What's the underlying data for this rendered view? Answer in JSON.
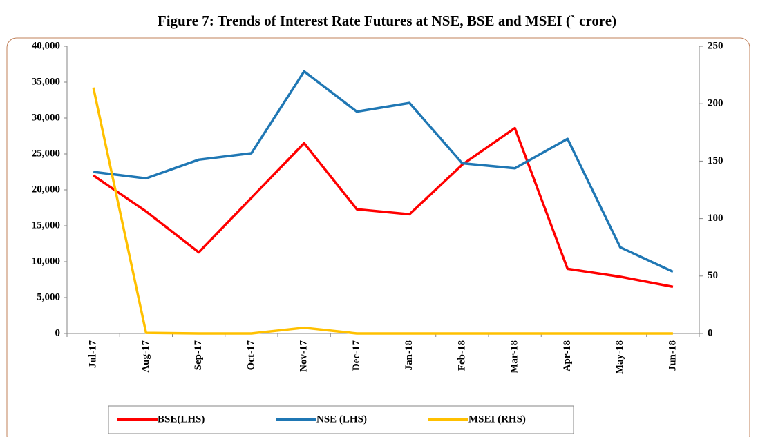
{
  "chart_data": {
    "type": "line",
    "title": "Figure 7: Trends of Interest Rate Futures at NSE, BSE and MSEI (` crore)",
    "categories": [
      "Jul-17",
      "Aug-17",
      "Sep-17",
      "Oct-17",
      "Nov-17",
      "Dec-17",
      "Jan-18",
      "Feb-18",
      "Mar-18",
      "Apr-18",
      "May-18",
      "Jun-18"
    ],
    "series": [
      {
        "name": "BSE(LHS)",
        "color": "#ff0000",
        "values": [
          22000,
          17000,
          11300,
          18900,
          26500,
          17300,
          16600,
          23500,
          28600,
          9000,
          7900,
          6500
        ]
      },
      {
        "name": "NSE (LHS)",
        "color": "#1f77b4",
        "values": [
          22500,
          21600,
          24200,
          25100,
          36500,
          30900,
          32100,
          23700,
          23000,
          27100,
          12000,
          8600
        ]
      },
      {
        "name": "MSEI (RHS)",
        "color": "#ffc000",
        "axis": "y2",
        "values": [
          214,
          0.5,
          0,
          0,
          5,
          0,
          0,
          0,
          0,
          0,
          0,
          0
        ]
      }
    ],
    "ylim": [
      0,
      40000
    ],
    "yticks": [
      0,
      {
        "value": 5000,
        "label": "5,000"
      },
      {
        "value": 10000,
        "label": "10,000"
      },
      {
        "value": 15000,
        "label": "15,000"
      },
      {
        "value": 20000,
        "label": "20,000"
      },
      {
        "value": 25000,
        "label": "25,000"
      },
      {
        "value": 30000,
        "label": "30,000"
      },
      {
        "value": 35000,
        "label": "35,000"
      },
      {
        "value": 40000,
        "label": "40,000"
      }
    ],
    "y2lim": [
      0,
      250
    ],
    "y2ticks": [
      0,
      50,
      100,
      150,
      200,
      250
    ],
    "legend": "bottom"
  }
}
